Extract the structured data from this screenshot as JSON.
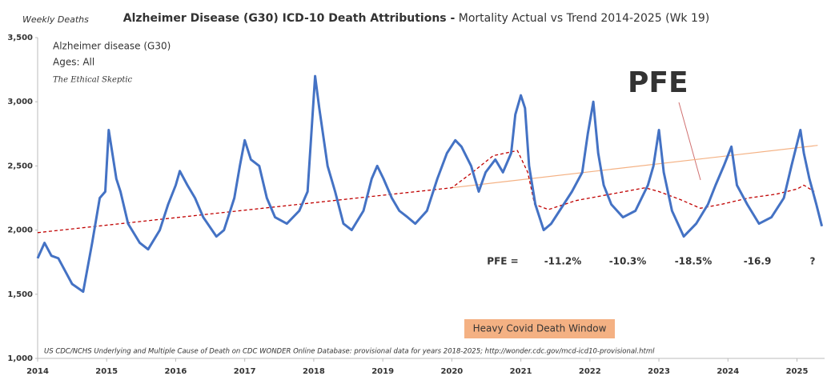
{
  "chart_data": {
    "type": "line",
    "title": "Alzheimer Disease (G30) ICD-10 Death Attributions -",
    "subtitle": "Mortality Actual vs Trend 2014-2025 (Wk 19)",
    "y_label": "Weekly Deaths",
    "legend_lines": [
      "Ages: All",
      "The Ethical Skeptic"
    ],
    "source": "US CDC/NCHS Underlying and Multiple Cause of Death on CDC WONDER Online Database: provisional data for years 2018-2025; http://wonder.cdc.gov/mcd-icd10-provisional.html",
    "annotations": {
      "pfe_title": "PFE",
      "pfe_row": [
        "PFE =",
        "-11.2%",
        "-10.3%",
        "-18.5%",
        "-16.9",
        "?"
      ],
      "covid_window": "Heavy Covid Death Window"
    },
    "xlim": [
      2014,
      2025.4
    ],
    "xticks": [
      2014,
      2015,
      2016,
      2017,
      2018,
      2019,
      2020,
      2021,
      2022,
      2023,
      2024,
      2025
    ],
    "ylim": [
      1000,
      3500
    ],
    "yticks": [
      {
        "value": 1000,
        "label": "1,000"
      },
      {
        "value": 1500,
        "label": "1,500"
      },
      {
        "value": 2000,
        "label": "2,000"
      },
      {
        "value": 2500,
        "label": "2,500"
      },
      {
        "value": 3000,
        "label": "3,000"
      },
      {
        "value": 3500,
        "label": "3,500"
      }
    ],
    "grid": false,
    "series": [
      {
        "name": "Alzheimer disease (G30)",
        "color": "#4472c4",
        "style": "solid",
        "width": 3,
        "x": [
          2014.0,
          2014.1,
          2014.2,
          2014.3,
          2014.4,
          2014.5,
          2014.66,
          2014.79,
          2014.9,
          2014.98,
          2015.03,
          2015.14,
          2015.2,
          2015.31,
          2015.48,
          2015.6,
          2015.77,
          2015.89,
          2016.0,
          2016.06,
          2016.17,
          2016.28,
          2016.4,
          2016.59,
          2016.7,
          2016.85,
          2016.93,
          2017.0,
          2017.09,
          2017.21,
          2017.32,
          2017.44,
          2017.61,
          2017.79,
          2017.91,
          2018.02,
          2018.08,
          2018.2,
          2018.31,
          2018.43,
          2018.55,
          2018.72,
          2018.84,
          2018.92,
          2019.01,
          2019.13,
          2019.24,
          2019.36,
          2019.47,
          2019.64,
          2019.79,
          2019.93,
          2020.05,
          2020.14,
          2020.28,
          2020.39,
          2020.49,
          2020.63,
          2020.74,
          2020.86,
          2020.92,
          2021.0,
          2021.06,
          2021.12,
          2021.21,
          2021.33,
          2021.44,
          2021.56,
          2021.74,
          2021.89,
          2021.97,
          2022.05,
          2022.12,
          2022.2,
          2022.31,
          2022.48,
          2022.66,
          2022.84,
          2022.92,
          2023.0,
          2023.07,
          2023.19,
          2023.36,
          2023.54,
          2023.71,
          2023.82,
          2023.94,
          2024.05,
          2024.13,
          2024.28,
          2024.45,
          2024.63,
          2024.81,
          2024.92,
          2025.05,
          2025.1,
          2025.18,
          2025.28,
          2025.36
        ],
        "values": [
          1780,
          1900,
          1800,
          1780,
          1680,
          1580,
          1520,
          1900,
          2250,
          2300,
          2780,
          2400,
          2300,
          2050,
          1900,
          1850,
          2000,
          2200,
          2350,
          2460,
          2350,
          2250,
          2100,
          1950,
          2000,
          2250,
          2500,
          2700,
          2550,
          2500,
          2250,
          2100,
          2050,
          2150,
          2300,
          3200,
          2950,
          2500,
          2300,
          2050,
          2000,
          2150,
          2400,
          2500,
          2400,
          2250,
          2150,
          2100,
          2050,
          2150,
          2400,
          2600,
          2700,
          2650,
          2500,
          2300,
          2450,
          2550,
          2450,
          2600,
          2900,
          3050,
          2950,
          2500,
          2200,
          2000,
          2050,
          2150,
          2300,
          2450,
          2750,
          3000,
          2600,
          2350,
          2200,
          2100,
          2150,
          2350,
          2500,
          2780,
          2450,
          2150,
          1950,
          2050,
          2200,
          2350,
          2500,
          2650,
          2350,
          2200,
          2050,
          2100,
          2250,
          2500,
          2780,
          2600,
          2400,
          2200,
          2030
        ]
      },
      {
        "color": "#c00000",
        "style": "dashed",
        "width": 1.3,
        "x": [
          2014.0,
          2020.0,
          2020.3,
          2020.6,
          2020.95,
          2021.1,
          2021.2,
          2021.4,
          2021.8,
          2022.3,
          2022.8,
          2023.0,
          2023.3,
          2023.6,
          2023.9,
          2024.3,
          2024.7,
          2025.0,
          2025.1,
          2025.25
        ],
        "values": [
          1980,
          2330,
          2450,
          2580,
          2620,
          2450,
          2200,
          2160,
          2230,
          2280,
          2330,
          2300,
          2240,
          2170,
          2200,
          2250,
          2280,
          2320,
          2350,
          2300
        ]
      },
      {
        "color": "#f4b183",
        "style": "solid",
        "width": 1.2,
        "x": [
          2020.0,
          2025.3
        ],
        "values": [
          2330,
          2660
        ]
      }
    ]
  }
}
